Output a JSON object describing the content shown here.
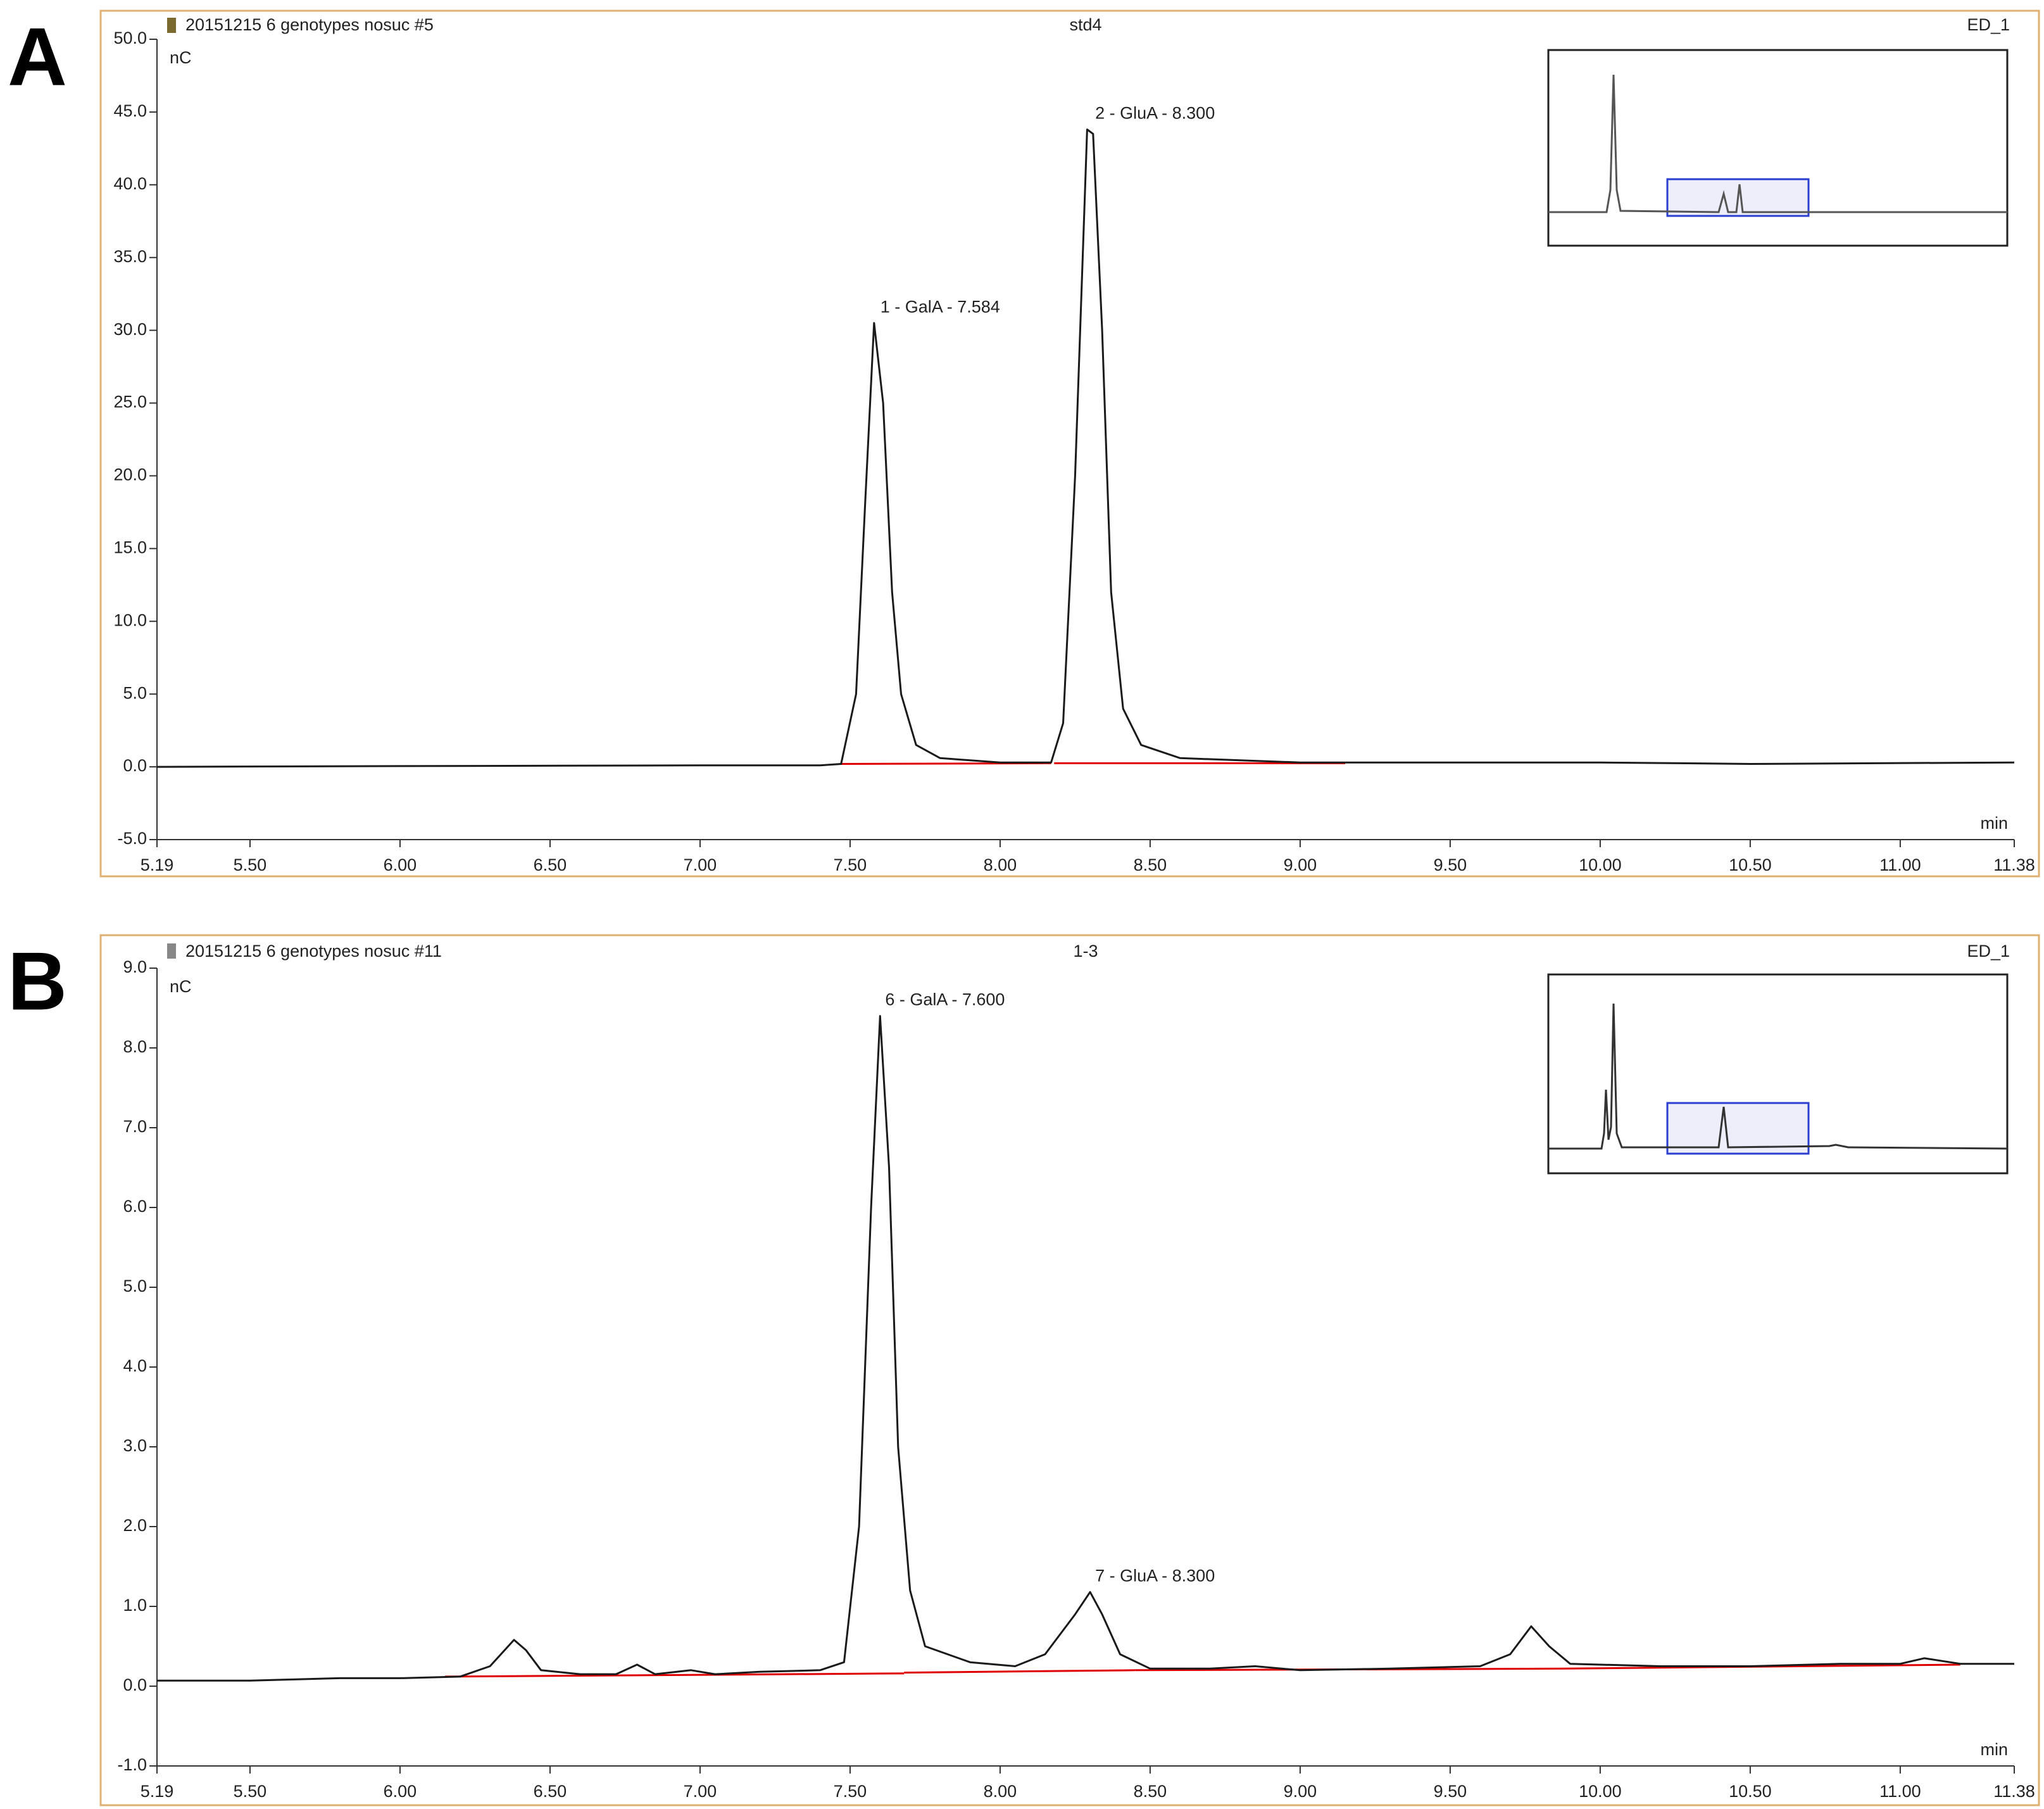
{
  "chart_data": [
    {
      "type": "line",
      "panel": "A",
      "header": {
        "file": "20151215 6 genotypes nosuc #5",
        "sample": "std4",
        "channel": "ED_1"
      },
      "ylabel": "nC",
      "xlabel": "min",
      "color": "#1a1a1a",
      "x": [
        5.19,
        6.0,
        7.0,
        7.4,
        7.47,
        7.52,
        7.55,
        7.58,
        7.61,
        7.64,
        7.67,
        7.72,
        7.8,
        8.0,
        8.17,
        8.21,
        8.25,
        8.29,
        8.31,
        8.34,
        8.37,
        8.41,
        8.47,
        8.6,
        9.0,
        10.0,
        10.5,
        11.38
      ],
      "values": [
        0.0,
        0.05,
        0.1,
        0.1,
        0.2,
        5,
        18,
        30.5,
        25,
        12,
        5,
        1.5,
        0.6,
        0.3,
        0.3,
        3,
        20,
        43.8,
        43.5,
        30,
        12,
        4,
        1.5,
        0.6,
        0.3,
        0.3,
        0.2,
        0.3
      ],
      "baselines": [
        {
          "x": [
            7.47,
            8.17
          ],
          "values": [
            0.2,
            0.25
          ],
          "color": "#e00000"
        },
        {
          "x": [
            8.18,
            9.15
          ],
          "values": [
            0.25,
            0.25
          ],
          "color": "#e00000"
        }
      ],
      "annotations": [
        {
          "text": "1 - GalA - 7.584",
          "x": 7.584,
          "y": 30.5
        },
        {
          "text": "2 - GluA - 8.300",
          "x": 8.3,
          "y": 43.8
        }
      ],
      "xlim": [
        5.19,
        11.38
      ],
      "ylim": [
        -5.0,
        50.0
      ],
      "xticks": [
        {
          "value": 5.19,
          "label": "5.19"
        },
        {
          "value": 5.5,
          "label": "5.50"
        },
        {
          "value": 6,
          "label": "6.00"
        },
        {
          "value": 6.5,
          "label": "6.50"
        },
        {
          "value": 7,
          "label": "7.00"
        },
        {
          "value": 7.5,
          "label": "7.50"
        },
        {
          "value": 8,
          "label": "8.00"
        },
        {
          "value": 8.5,
          "label": "8.50"
        },
        {
          "value": 9,
          "label": "9.00"
        },
        {
          "value": 9.5,
          "label": "9.50"
        },
        {
          "value": 10,
          "label": "10.00"
        },
        {
          "value": 10.5,
          "label": "10.50"
        },
        {
          "value": 11,
          "label": "11.00"
        },
        {
          "value": 11.38,
          "label": "11.38"
        }
      ],
      "yticks": [
        {
          "value": -5,
          "label": "-5.0"
        },
        {
          "value": 0,
          "label": "0.0"
        },
        {
          "value": 5,
          "label": "5.0"
        },
        {
          "value": 10,
          "label": "10.0"
        },
        {
          "value": 15,
          "label": "15.0"
        },
        {
          "value": 20,
          "label": "20.0"
        },
        {
          "value": 25,
          "label": "25.0"
        },
        {
          "value": 30,
          "label": "30.0"
        },
        {
          "value": 35,
          "label": "35.0"
        },
        {
          "value": 40,
          "label": "40.0"
        },
        {
          "value": 45,
          "label": "45.0"
        },
        {
          "value": 50,
          "label": "50.0"
        }
      ]
    },
    {
      "type": "line",
      "panel": "B",
      "header": {
        "file": "20151215 6 genotypes nosuc #11",
        "sample": "1-3",
        "channel": "ED_1"
      },
      "ylabel": "nC",
      "xlabel": "min",
      "color": "#1a1a1a",
      "x": [
        5.19,
        5.5,
        5.8,
        6.0,
        6.2,
        6.3,
        6.38,
        6.42,
        6.47,
        6.6,
        6.72,
        6.79,
        6.85,
        6.97,
        7.05,
        7.2,
        7.4,
        7.48,
        7.53,
        7.57,
        7.6,
        7.63,
        7.66,
        7.7,
        7.75,
        7.9,
        8.05,
        8.15,
        8.25,
        8.3,
        8.34,
        8.4,
        8.5,
        8.7,
        8.85,
        9.0,
        9.3,
        9.6,
        9.7,
        9.77,
        9.83,
        9.9,
        10.2,
        10.5,
        10.8,
        11.0,
        11.08,
        11.2,
        11.38
      ],
      "values": [
        0.07,
        0.07,
        0.1,
        0.1,
        0.12,
        0.25,
        0.58,
        0.45,
        0.2,
        0.15,
        0.15,
        0.27,
        0.15,
        0.2,
        0.15,
        0.18,
        0.2,
        0.3,
        2,
        6,
        8.4,
        6.5,
        3,
        1.2,
        0.5,
        0.3,
        0.25,
        0.4,
        0.9,
        1.18,
        0.9,
        0.4,
        0.22,
        0.22,
        0.25,
        0.2,
        0.22,
        0.25,
        0.4,
        0.75,
        0.5,
        0.28,
        0.25,
        0.25,
        0.28,
        0.28,
        0.35,
        0.28,
        0.28
      ],
      "baselines": [
        {
          "x": [
            6.15,
            7.68
          ],
          "values": [
            0.12,
            0.16
          ],
          "color": "#e00000"
        },
        {
          "x": [
            7.68,
            8.45
          ],
          "values": [
            0.17,
            0.2
          ],
          "color": "#e00000"
        },
        {
          "x": [
            8.45,
            9.88
          ],
          "values": [
            0.2,
            0.22
          ],
          "color": "#e00000"
        },
        {
          "x": [
            9.88,
            11.2
          ],
          "values": [
            0.22,
            0.27
          ],
          "color": "#e00000"
        }
      ],
      "annotations": [
        {
          "text": "6 - GalA - 7.600",
          "x": 7.6,
          "y": 8.4
        },
        {
          "text": "7 - GluA - 8.300",
          "x": 8.3,
          "y": 1.18
        }
      ],
      "xlim": [
        5.19,
        11.38
      ],
      "ylim": [
        -1.0,
        9.0
      ],
      "xticks": [
        {
          "value": 5.19,
          "label": "5.19"
        },
        {
          "value": 5.5,
          "label": "5.50"
        },
        {
          "value": 6,
          "label": "6.00"
        },
        {
          "value": 6.5,
          "label": "6.50"
        },
        {
          "value": 7,
          "label": "7.00"
        },
        {
          "value": 7.5,
          "label": "7.50"
        },
        {
          "value": 8,
          "label": "8.00"
        },
        {
          "value": 8.5,
          "label": "8.50"
        },
        {
          "value": 9,
          "label": "9.00"
        },
        {
          "value": 9.5,
          "label": "9.50"
        },
        {
          "value": 10,
          "label": "10.00"
        },
        {
          "value": 10.5,
          "label": "10.50"
        },
        {
          "value": 11,
          "label": "11.00"
        },
        {
          "value": 11.38,
          "label": "11.38"
        }
      ],
      "yticks": [
        {
          "value": -1,
          "label": "-1.0"
        },
        {
          "value": 0,
          "label": "0.0"
        },
        {
          "value": 1,
          "label": "1.0"
        },
        {
          "value": 2,
          "label": "2.0"
        },
        {
          "value": 3,
          "label": "3.0"
        },
        {
          "value": 4,
          "label": "4.0"
        },
        {
          "value": 5,
          "label": "5.0"
        },
        {
          "value": 6,
          "label": "6.0"
        },
        {
          "value": 7,
          "label": "7.0"
        },
        {
          "value": 8,
          "label": "8.0"
        },
        {
          "value": 9,
          "label": "9.0"
        }
      ]
    }
  ]
}
